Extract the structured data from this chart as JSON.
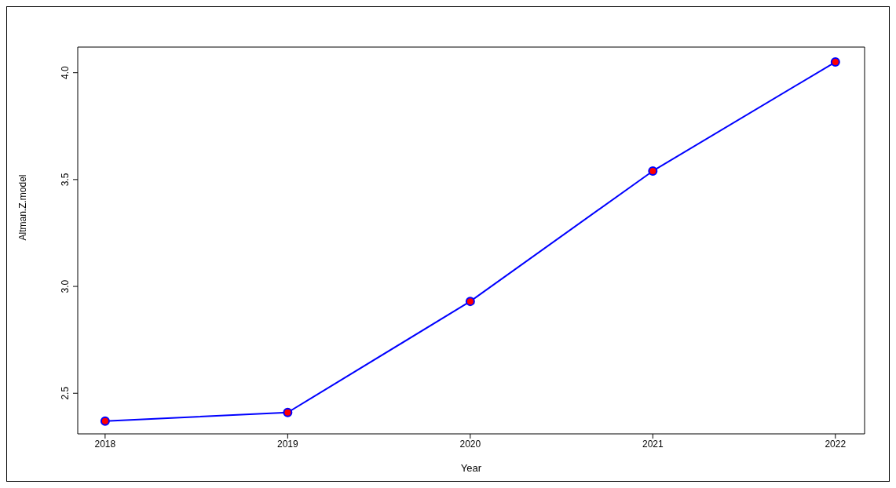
{
  "chart_data": {
    "type": "line",
    "xlabel": "Year",
    "ylabel": "Altman.Z.model",
    "x": [
      2018,
      2019,
      2020,
      2021,
      2022
    ],
    "series": [
      {
        "color": "#0000ff",
        "values": [
          2.37,
          2.41,
          2.93,
          3.54,
          4.05
        ]
      }
    ],
    "xlim": [
      2017.85,
      2022.16
    ],
    "xticks": [
      2018,
      2019,
      2020,
      2021,
      2022
    ],
    "ylim": [
      2.31,
      4.12
    ],
    "yticks": [
      2.5,
      {
        "value": 3,
        "label": "3.0"
      },
      3.5,
      {
        "value": 4,
        "label": "4.0"
      }
    ],
    "marker": "circle",
    "line_style": "solid",
    "grid": false,
    "legend": false
  }
}
